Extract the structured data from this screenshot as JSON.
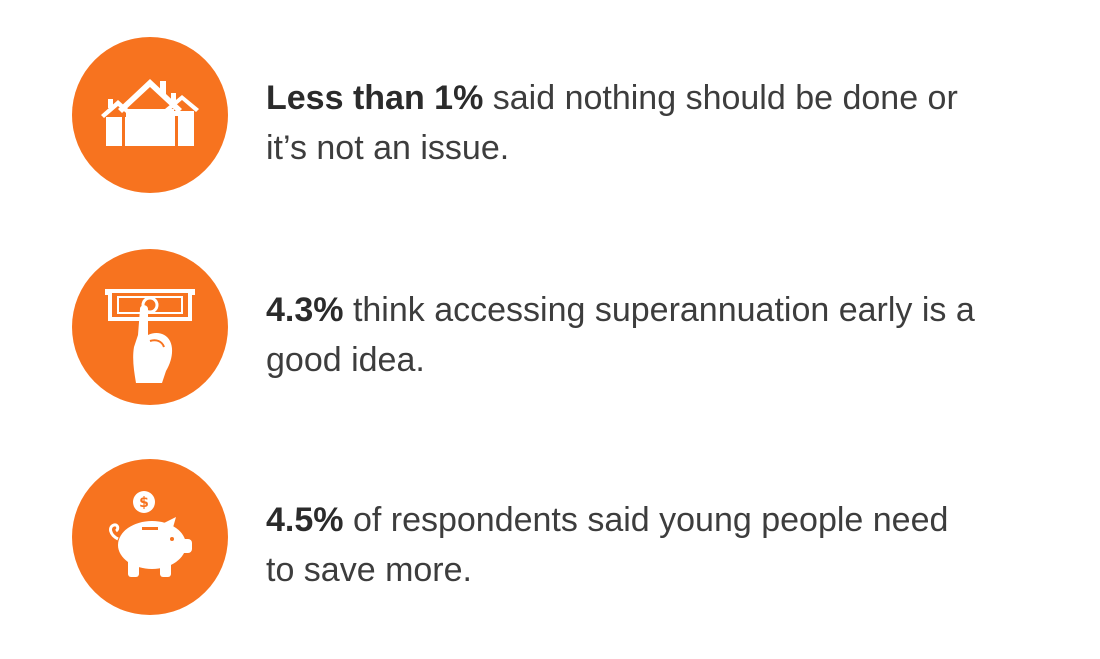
{
  "stats": [
    {
      "icon": "houses-icon",
      "highlight": "Less than 1%",
      "text": " said nothing should be done or it’s not an issue."
    },
    {
      "icon": "hand-cash-icon",
      "highlight": "4.3%",
      "text": " think accessing superannuation early is a good idea."
    },
    {
      "icon": "piggy-bank-icon",
      "highlight": "4.5%",
      "text": " of respondents said young people need to save more."
    }
  ],
  "colors": {
    "accent": "#f7731f",
    "text": "#3d3d3d",
    "background": "#ffffff"
  },
  "icon_glyphs": {
    "coin_symbol": "$"
  }
}
